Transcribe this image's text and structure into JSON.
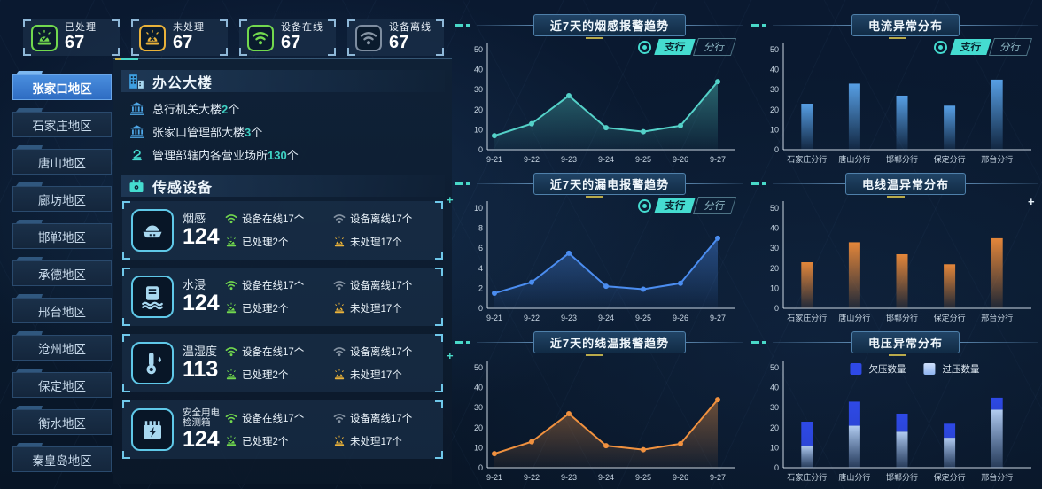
{
  "colors": {
    "teal": "#45dcd0",
    "green": "#72d84e",
    "yellow": "#e9b23a",
    "gray": "#8593a2",
    "light_blue": "#a8d8f0",
    "blue": "#4fa8e8",
    "count_teal": "#3fd2c4",
    "bright_blue": "#3f82d8"
  },
  "stats": [
    {
      "label": "已处理",
      "value": "67",
      "icon": "alarm-check-icon"
    },
    {
      "label": "未处理",
      "value": "67",
      "icon": "alarm-x-icon"
    },
    {
      "label": "设备在线",
      "value": "67",
      "icon": "wifi-online-icon"
    },
    {
      "label": "设备离线",
      "value": "67",
      "icon": "wifi-offline-icon"
    }
  ],
  "sidebar": {
    "items": [
      {
        "label": "张家口地区",
        "active": true
      },
      {
        "label": "石家庄地区",
        "active": false
      },
      {
        "label": "唐山地区",
        "active": false
      },
      {
        "label": "廊坊地区",
        "active": false
      },
      {
        "label": "邯郸地区",
        "active": false
      },
      {
        "label": "承德地区",
        "active": false
      },
      {
        "label": "邢台地区",
        "active": false
      },
      {
        "label": "沧州地区",
        "active": false
      },
      {
        "label": "保定地区",
        "active": false
      },
      {
        "label": "衡水地区",
        "active": false
      },
      {
        "label": "秦皇岛地区",
        "active": false
      }
    ]
  },
  "building_panel": {
    "title": "办公大楼",
    "rows": [
      {
        "icon": "bank-icon",
        "text": "总行机关大楼",
        "count": "2",
        "suffix": "个"
      },
      {
        "icon": "bank-icon",
        "text": "张家口管理部大楼",
        "count": "3",
        "suffix": "个"
      },
      {
        "icon": "service-desk-icon",
        "text": "管理部辖内各营业场所",
        "count": "130",
        "suffix": "个"
      }
    ]
  },
  "sensor_panel": {
    "title": "传感设备",
    "cards": [
      {
        "name": "烟感",
        "name2": "",
        "value": "124",
        "icon": "smoke-sensor-icon",
        "online": "设备在线17个",
        "offline": "设备离线17个",
        "handled": "已处理2个",
        "unhandled": "未处理17个"
      },
      {
        "name": "水浸",
        "name2": "",
        "value": "124",
        "icon": "water-sensor-icon",
        "online": "设备在线17个",
        "offline": "设备离线17个",
        "handled": "已处理2个",
        "unhandled": "未处理17个"
      },
      {
        "name": "温湿度",
        "name2": "",
        "value": "113",
        "icon": "thermo-sensor-icon",
        "online": "设备在线17个",
        "offline": "设备离线17个",
        "handled": "已处理2个",
        "unhandled": "未处理17个"
      },
      {
        "name": "安全用电",
        "name2": "检测箱",
        "value": "124",
        "icon": "electric-box-icon",
        "online": "设备在线17个",
        "offline": "设备离线17个",
        "handled": "已处理2个",
        "unhandled": "未处理17个"
      }
    ]
  },
  "chart_data": [
    {
      "type": "line",
      "title": "近7天的烟感报警趋势",
      "color": "#54d1c8",
      "categories": [
        "9-21",
        "9-22",
        "9-23",
        "9-24",
        "9-25",
        "9-26",
        "9-27"
      ],
      "values": [
        7,
        13,
        27,
        11,
        9,
        12,
        34
      ],
      "ylim": [
        0,
        50
      ],
      "yticks": [
        0,
        10,
        20,
        30,
        40,
        50
      ],
      "grid": false,
      "toggle": {
        "active": "支行",
        "inactive": "分行"
      }
    },
    {
      "type": "bar",
      "title": "电流异常分布",
      "color": "#5ba6ee",
      "categories": [
        "石家庄分行",
        "唐山分行",
        "邯郸分行",
        "保定分行",
        "邢台分行"
      ],
      "values": [
        23,
        33,
        27,
        22,
        35
      ],
      "ylim": [
        0,
        50
      ],
      "yticks": [
        0,
        10,
        20,
        30,
        40,
        50
      ],
      "grid": false,
      "toggle": {
        "active": "支行",
        "inactive": "分行"
      }
    },
    {
      "type": "line",
      "title": "近7天的漏电报警趋势",
      "color": "#4b8df0",
      "categories": [
        "9-21",
        "9-22",
        "9-23",
        "9-24",
        "9-25",
        "9-26",
        "9-27"
      ],
      "values": [
        1.5,
        2.6,
        5.5,
        2.2,
        1.9,
        2.5,
        7
      ],
      "ylim": [
        0,
        10
      ],
      "yticks": [
        0,
        2,
        4,
        6,
        8,
        10
      ],
      "grid": false,
      "toggle": {
        "active": "支行",
        "inactive": "分行"
      }
    },
    {
      "type": "bar",
      "title": "电线温异常分布",
      "color": "#ef8c3a",
      "categories": [
        "石家庄分行",
        "唐山分行",
        "邯郸分行",
        "保定分行",
        "邢台分行"
      ],
      "values": [
        23,
        33,
        27,
        22,
        35
      ],
      "ylim": [
        0,
        50
      ],
      "yticks": [
        0,
        10,
        20,
        30,
        40,
        50
      ],
      "grid": false
    },
    {
      "type": "line",
      "title": "近7天的线温报警趋势",
      "color": "#f0913f",
      "categories": [
        "9-21",
        "9-22",
        "9-23",
        "9-24",
        "9-25",
        "9-26",
        "9-27"
      ],
      "values": [
        7,
        13,
        27,
        11,
        9,
        12,
        34
      ],
      "ylim": [
        0,
        50
      ],
      "yticks": [
        0,
        10,
        20,
        30,
        40,
        50
      ],
      "grid": false
    },
    {
      "type": "stacked-bar",
      "title": "电压异常分布",
      "categories": [
        "石家庄分行",
        "唐山分行",
        "邯郸分行",
        "保定分行",
        "邢台分行"
      ],
      "series": [
        {
          "name": "欠压数量",
          "color": "#2e49e6",
          "values": [
            12,
            12,
            9,
            7,
            6
          ]
        },
        {
          "name": "过压数量",
          "color": "#8fb4f0",
          "values": [
            11,
            21,
            18,
            15,
            29
          ]
        }
      ],
      "ylim": [
        0,
        50
      ],
      "yticks": [
        0,
        10,
        20,
        30,
        40,
        50
      ],
      "grid": false,
      "legend": true,
      "legend_position": "top-center"
    }
  ]
}
